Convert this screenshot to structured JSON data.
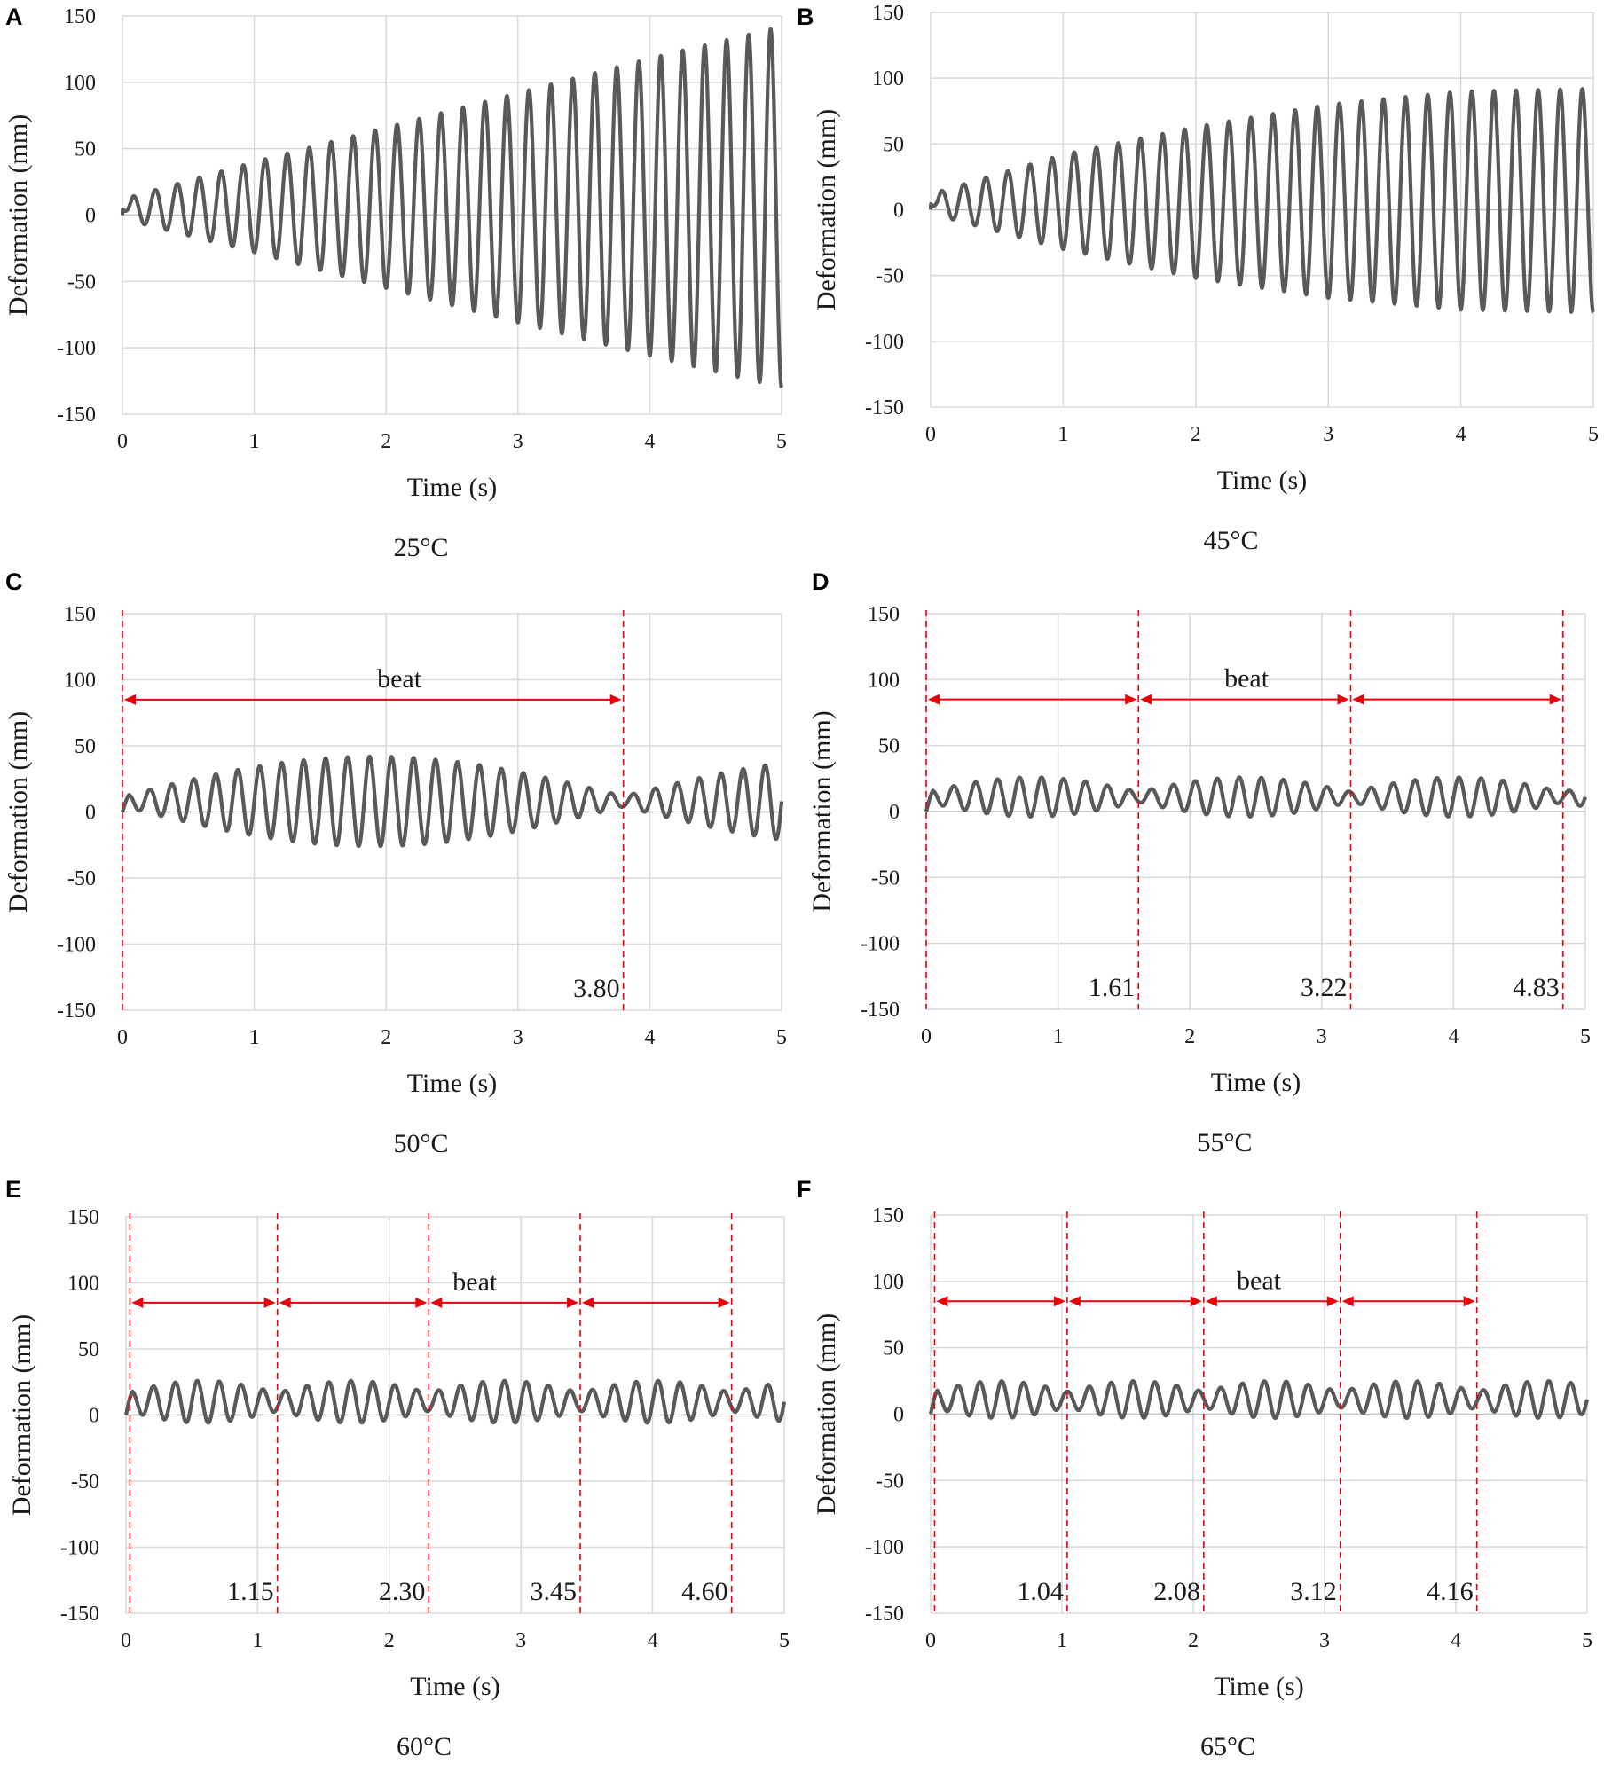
{
  "figure": {
    "xlabel": "Time (s)",
    "ylabel": "Deformation (mm)",
    "beat_label": "beat"
  },
  "colors": {
    "series": "#595959",
    "beat_lines": "#e8000b",
    "grid": "#d9d9d9"
  },
  "chart_data": [
    {
      "panel": "A",
      "temperature": "25°C",
      "type": "line",
      "title": "",
      "xlabel": "Time (s)",
      "ylabel": "Deformation (mm)",
      "xlim": [
        0,
        5
      ],
      "ylim": [
        -150,
        150
      ],
      "xticks": [
        0,
        1,
        2,
        3,
        4,
        5
      ],
      "yticks": [
        150,
        100,
        50,
        0,
        -50,
        -100,
        -150
      ],
      "series": [
        {
          "name": "Deformation",
          "frequency_hz": 6.0,
          "envelope_t": [
            0,
            1,
            2,
            3,
            4,
            5
          ],
          "upper": [
            12,
            40,
            66,
            92,
            118,
            142
          ],
          "lower": [
            -3,
            -28,
            -55,
            -81,
            -106,
            -130
          ]
        }
      ],
      "beat_markers": []
    },
    {
      "panel": "B",
      "temperature": "45°C",
      "type": "line",
      "title": "",
      "xlabel": "Time (s)",
      "ylabel": "Deformation (mm)",
      "xlim": [
        0,
        5
      ],
      "ylim": [
        -150,
        150
      ],
      "xticks": [
        0,
        1,
        2,
        3,
        4,
        5
      ],
      "yticks": [
        150,
        100,
        50,
        0,
        -50,
        -100,
        -150
      ],
      "series": [
        {
          "name": "Deformation",
          "frequency_hz": 6.0,
          "envelope_t": [
            0,
            1,
            2,
            3,
            4,
            5
          ],
          "upper": [
            12,
            42,
            63,
            80,
            90,
            92
          ],
          "lower": [
            -3,
            -30,
            -52,
            -67,
            -76,
            -78
          ]
        }
      ],
      "beat_markers": []
    },
    {
      "panel": "C",
      "temperature": "50°C",
      "type": "line",
      "title": "",
      "xlabel": "Time (s)",
      "ylabel": "Deformation (mm)",
      "xlim": [
        0,
        5
      ],
      "ylim": [
        -150,
        150
      ],
      "xticks": [
        0,
        1,
        2,
        3,
        4,
        5
      ],
      "yticks": [
        150,
        100,
        50,
        0,
        -50,
        -100,
        -150
      ],
      "series": [
        {
          "name": "Deformation",
          "frequency_hz": 6.0,
          "beat_period": 3.8,
          "center": 8,
          "amp_min": 4,
          "amp_max": 34
        }
      ],
      "beat_markers": [
        0,
        3.8
      ],
      "marker_labels": [
        "3.80"
      ],
      "arrow_y": 85,
      "beat_label_x": 2.1
    },
    {
      "panel": "D",
      "temperature": "55°C",
      "type": "line",
      "title": "",
      "xlabel": "Time (s)",
      "ylabel": "Deformation (mm)",
      "xlim": [
        0,
        5
      ],
      "ylim": [
        -150,
        150
      ],
      "xticks": [
        0,
        1,
        2,
        3,
        4,
        5
      ],
      "yticks": [
        150,
        100,
        50,
        0,
        -50,
        -100,
        -150
      ],
      "series": [
        {
          "name": "Deformation",
          "frequency_hz": 6.0,
          "beat_period": 1.61,
          "center": 11,
          "amp_min": 4,
          "amp_max": 15
        }
      ],
      "beat_markers": [
        0,
        1.61,
        3.22,
        4.83
      ],
      "marker_labels": [
        "1.61",
        "3.22",
        "4.83"
      ],
      "arrow_y": 85,
      "beat_label_x": 2.43
    },
    {
      "panel": "E",
      "temperature": "60°C",
      "type": "line",
      "title": "",
      "xlabel": "Time (s)",
      "ylabel": "Deformation (mm)",
      "xlim": [
        0,
        5
      ],
      "ylim": [
        -150,
        150
      ],
      "xticks": [
        0,
        1,
        2,
        3,
        4,
        5
      ],
      "yticks": [
        150,
        100,
        50,
        0,
        -50,
        -100,
        -150
      ],
      "series": [
        {
          "name": "Deformation",
          "frequency_hz": 6.0,
          "beat_period": 1.15,
          "center": 10,
          "amp_min": 7,
          "amp_max": 16
        }
      ],
      "beat_markers": [
        0.03,
        1.15,
        2.3,
        3.45,
        4.6
      ],
      "marker_labels": [
        "1.15",
        "2.30",
        "3.45",
        "4.60"
      ],
      "arrow_y": 85,
      "beat_label_x": 2.65
    },
    {
      "panel": "F",
      "temperature": "65°C",
      "type": "line",
      "title": "",
      "xlabel": "Time (s)",
      "ylabel": "Deformation (mm)",
      "xlim": [
        0,
        5
      ],
      "ylim": [
        -150,
        150
      ],
      "xticks": [
        0,
        1,
        2,
        3,
        4,
        5
      ],
      "yticks": [
        150,
        100,
        50,
        0,
        -50,
        -100,
        -150
      ],
      "series": [
        {
          "name": "Deformation",
          "frequency_hz": 6.0,
          "beat_period": 1.04,
          "center": 11,
          "amp_min": 6,
          "amp_max": 14
        }
      ],
      "beat_markers": [
        0.03,
        1.04,
        2.08,
        3.12,
        4.16
      ],
      "marker_labels": [
        "1.04",
        "2.08",
        "3.12",
        "4.16"
      ],
      "arrow_y": 85,
      "beat_label_x": 2.5
    }
  ]
}
